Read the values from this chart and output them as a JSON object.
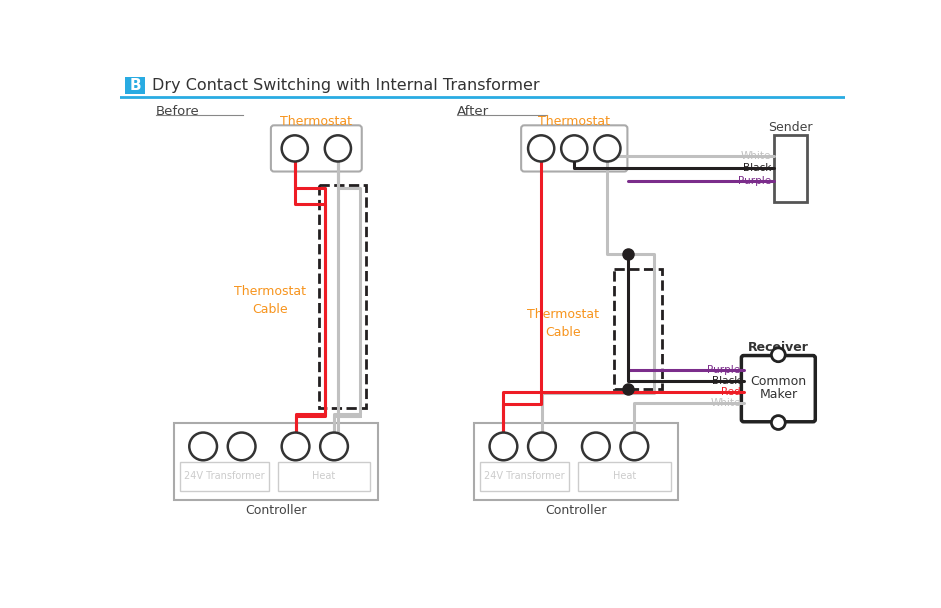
{
  "title": "Dry Contact Switching with Internal Transformer",
  "title_label": "B",
  "bg_color": "#ffffff",
  "header_bg": "#29abe2",
  "before_label": "Before",
  "after_label": "After",
  "thermostat_color": "#f7941d",
  "cable_label_color": "#f7941d",
  "gray": "#aaaaaa",
  "light_gray": "#cccccc",
  "red": "#ee1c25",
  "black": "#231f20",
  "purple": "#7b2d8b",
  "white_wire": "#c0c0c0",
  "dashed_color": "#231f20",
  "controller_label": "Controller",
  "thermostat_label": "Thermostat",
  "sender_label": "Sender",
  "receiver_label": "Receiver",
  "cable_label": "Thermostat\nCable",
  "transformer_label": "24V Transformer",
  "heat_label": "Heat",
  "common_maker_line1": "Common",
  "common_maker_line2": "Maker"
}
